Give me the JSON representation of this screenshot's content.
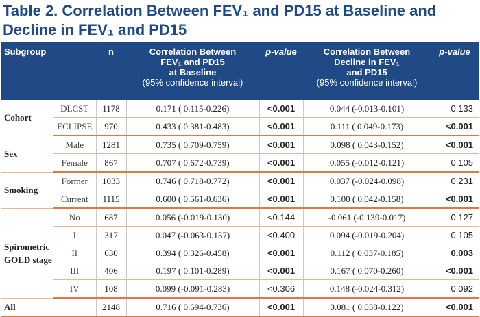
{
  "title_line1": "Table 2. Correlation Between FEV₁  and PD15 at Baseline and",
  "title_line2": "Decline in FEV₁  and PD15",
  "header": {
    "subgroup": "Subgroup",
    "n": "n",
    "corr_baseline_line1": "Correlation Between",
    "corr_baseline_line2": "FEV₁ and PD15",
    "corr_baseline_line3": "at Baseline",
    "corr_baseline_ci": "(95% confidence interval)",
    "pvalue1": "p-value",
    "corr_decline_line1": "Correlation Between",
    "corr_decline_line2": "Decline in FEV₁",
    "corr_decline_line3": "and PD15",
    "corr_decline_ci": "(95% confidence interval)",
    "pvalue2": "p-value"
  },
  "groups": {
    "cohort": "Cohort",
    "sex": "Sex",
    "smoking": "Smoking",
    "spiro_line1": "Spirometric",
    "spiro_line2": "GOLD stage",
    "all": "All"
  },
  "rows": [
    {
      "sub": "DLCST",
      "n": "1178",
      "corr": "0.171  ( 0.115-0.226)",
      "p1": "<0.001",
      "p1_bold": true,
      "dec": "0.044  (-0.013-0.101)",
      "p2": "0.133",
      "p2_bold": false
    },
    {
      "sub": "ECLIPSE",
      "n": "970",
      "corr": "0.433  ( 0.381-0.483)",
      "p1": "<0.001",
      "p1_bold": true,
      "dec": "0.111  ( 0.049-0.173)",
      "p2": "<0.001",
      "p2_bold": true
    },
    {
      "sub": "Male",
      "n": "1281",
      "corr": "0.735  ( 0.709-0.759)",
      "p1": "<0.001",
      "p1_bold": true,
      "dec": "0.098  ( 0.043-0.152)",
      "p2": "<0.001",
      "p2_bold": true
    },
    {
      "sub": "Female",
      "n": "867",
      "corr": "0.707  ( 0.672-0.739)",
      "p1": "<0.001",
      "p1_bold": true,
      "dec": "0.055  (-0.012-0.121)",
      "p2": "0.105",
      "p2_bold": false
    },
    {
      "sub": "Former",
      "n": "1033",
      "corr": "0.746  ( 0.718-0.772)",
      "p1": "<0.001",
      "p1_bold": true,
      "dec": "0.037  (-0.024-0.098)",
      "p2": "0.231",
      "p2_bold": false
    },
    {
      "sub": "Current",
      "n": "1115",
      "corr": "0.600  ( 0.561-0.636)",
      "p1": "<0.001",
      "p1_bold": true,
      "dec": "0.100  ( 0.042-0.158)",
      "p2": "<0.001",
      "p2_bold": true
    },
    {
      "sub": "No",
      "n": "687",
      "corr": "0.056  (-0.019-0.130)",
      "p1": "<0.144",
      "p1_bold": false,
      "dec": "-0.061  (-0.139-0.017)",
      "p2": "0.127",
      "p2_bold": false
    },
    {
      "sub": "I",
      "n": "317",
      "corr": "0.047  (-0.063-0.157)",
      "p1": "<0.400",
      "p1_bold": false,
      "dec": "0.094  (-0.019-0.204)",
      "p2": "0.105",
      "p2_bold": false
    },
    {
      "sub": "II",
      "n": "630",
      "corr": "0.394  ( 0.326-0.458)",
      "p1": "<0.001",
      "p1_bold": true,
      "dec": "0.112  ( 0.037-0.185)",
      "p2": "0.003",
      "p2_bold": true
    },
    {
      "sub": "III",
      "n": "406",
      "corr": "0.197  ( 0.101-0.289)",
      "p1": "<0.001",
      "p1_bold": true,
      "dec": "0.167  ( 0.070-0.260)",
      "p2": "<0.001",
      "p2_bold": true
    },
    {
      "sub": "IV",
      "n": "108",
      "corr": "0.099  (-0.091-0.283)",
      "p1": "<0.306",
      "p1_bold": false,
      "dec": "0.148  (-0.024-0.312)",
      "p2": "0.092",
      "p2_bold": false
    },
    {
      "sub": "",
      "n": "2148",
      "corr": "0.716  ( 0.694-0.736)",
      "p1": "<0.001",
      "p1_bold": true,
      "dec": "0.081  ( 0.038-0.122)",
      "p2": "<0.001",
      "p2_bold": true
    }
  ],
  "colors": {
    "header_bg": "#1f4a86",
    "title": "#1f4a86",
    "rule": "#e0793e"
  }
}
